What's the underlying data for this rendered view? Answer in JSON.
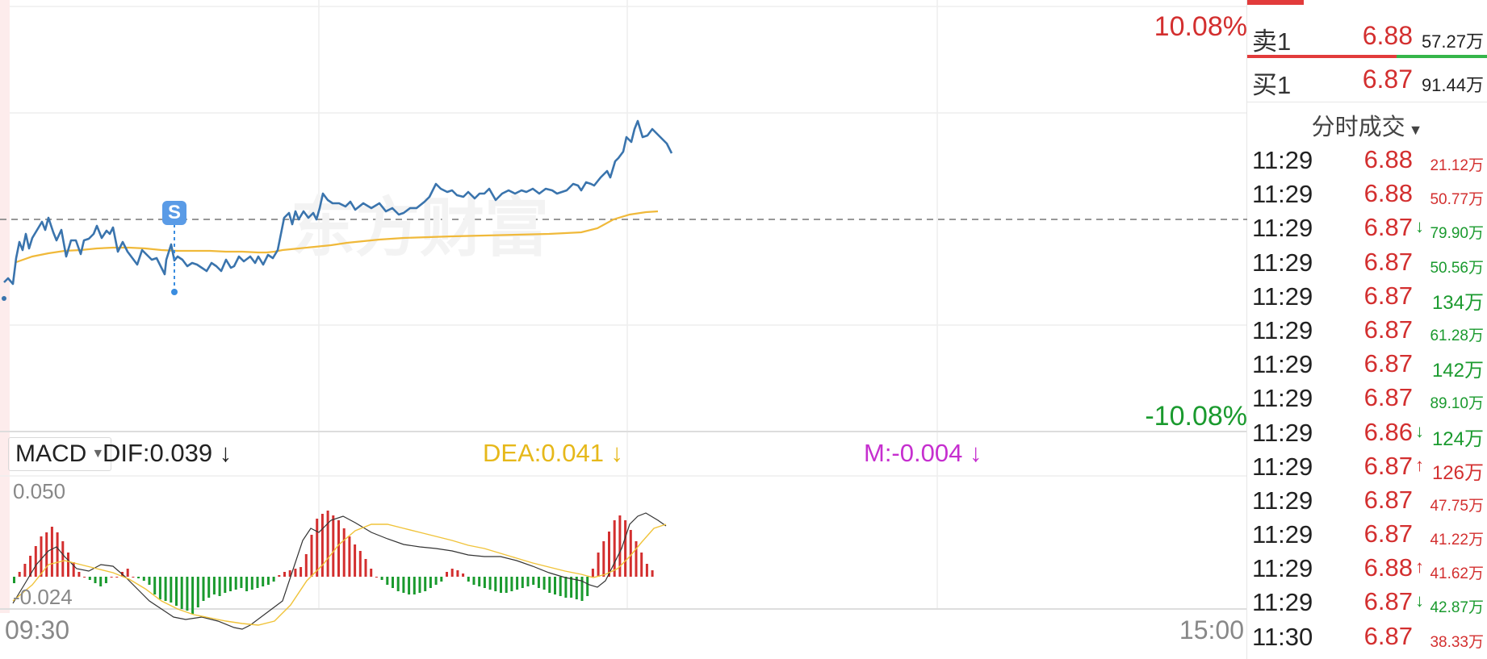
{
  "chart": {
    "pct_top": "10.08%",
    "pct_bottom": "-10.08%",
    "marker_label": "S",
    "time_start": "09:30",
    "time_end": "15:00",
    "colors": {
      "price_line": "#3a74ad",
      "avg_line": "#f0b93a",
      "up": "#d32f2f",
      "down": "#1a9a2e"
    }
  },
  "macd": {
    "selector_label": "MACD",
    "dif": "DIF:0.039 ↓",
    "dea": "DEA:0.041 ↓",
    "m": "M:-0.004 ↓",
    "axis_max": "0.050",
    "axis_min": "-0.024"
  },
  "order_book": {
    "sell": {
      "label": "卖1",
      "price": "6.88",
      "volume": "57.27万"
    },
    "buy": {
      "label": "买1",
      "price": "6.87",
      "volume": "91.44万"
    }
  },
  "trades": {
    "header": "分时成交",
    "rows": [
      {
        "time": "11:29",
        "price": "6.88",
        "arrow": "",
        "volume": "21.12万",
        "dir": "red",
        "big": false
      },
      {
        "time": "11:29",
        "price": "6.88",
        "arrow": "",
        "volume": "50.77万",
        "dir": "red",
        "big": false
      },
      {
        "time": "11:29",
        "price": "6.87",
        "arrow": "↓",
        "volume": "79.90万",
        "dir": "green",
        "big": false
      },
      {
        "time": "11:29",
        "price": "6.87",
        "arrow": "",
        "volume": "50.56万",
        "dir": "green",
        "big": false
      },
      {
        "time": "11:29",
        "price": "6.87",
        "arrow": "",
        "volume": "134万",
        "dir": "green",
        "big": true
      },
      {
        "time": "11:29",
        "price": "6.87",
        "arrow": "",
        "volume": "61.28万",
        "dir": "green",
        "big": false
      },
      {
        "time": "11:29",
        "price": "6.87",
        "arrow": "",
        "volume": "142万",
        "dir": "green",
        "big": true
      },
      {
        "time": "11:29",
        "price": "6.87",
        "arrow": "",
        "volume": "89.10万",
        "dir": "green",
        "big": false
      },
      {
        "time": "11:29",
        "price": "6.86",
        "arrow": "↓",
        "volume": "124万",
        "dir": "green",
        "big": true
      },
      {
        "time": "11:29",
        "price": "6.87",
        "arrow": "↑",
        "volume": "126万",
        "dir": "red",
        "big": true
      },
      {
        "time": "11:29",
        "price": "6.87",
        "arrow": "",
        "volume": "47.75万",
        "dir": "red",
        "big": false
      },
      {
        "time": "11:29",
        "price": "6.87",
        "arrow": "",
        "volume": "41.22万",
        "dir": "red",
        "big": false
      },
      {
        "time": "11:29",
        "price": "6.88",
        "arrow": "↑",
        "volume": "41.62万",
        "dir": "red",
        "big": false
      },
      {
        "time": "11:29",
        "price": "6.87",
        "arrow": "↓",
        "volume": "42.87万",
        "dir": "green",
        "big": false
      },
      {
        "time": "11:30",
        "price": "6.87",
        "arrow": "",
        "volume": "38.33万",
        "dir": "red",
        "big": false
      }
    ]
  }
}
